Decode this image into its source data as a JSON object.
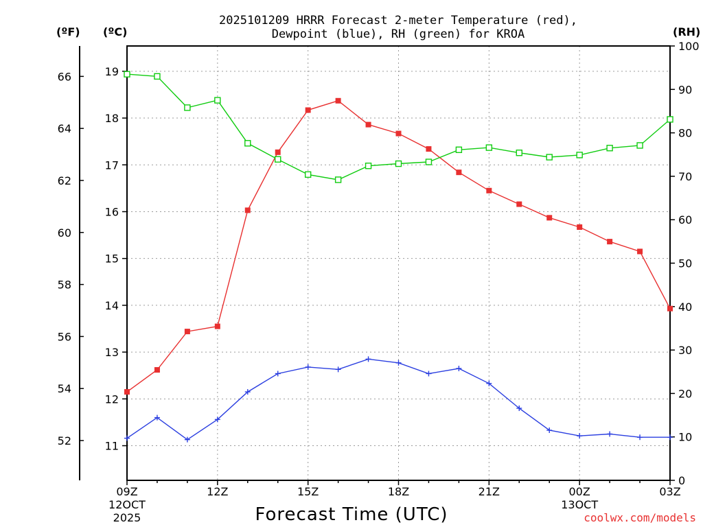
{
  "title": {
    "line1": "2025101209 HRRR Forecast 2-meter Temperature (red),",
    "line2": "Dewpoint (blue), RH (green) for KROA"
  },
  "units": {
    "fahrenheit": "(ºF)",
    "celsius": "(ºC)",
    "rh": "(RH)"
  },
  "credit": "coolwx.com/models",
  "colors": {
    "temperature": "#e83030",
    "dewpoint": "#2a3ee0",
    "rh": "#10cc10"
  },
  "chart_data": {
    "type": "line",
    "xlabel": "Forecast Time (UTC)",
    "x": [
      0,
      1,
      2,
      3,
      4,
      5,
      6,
      7,
      8,
      9,
      10,
      11,
      12,
      13,
      14,
      15,
      16,
      17,
      18
    ],
    "x_range": [
      0,
      18
    ],
    "x_ticks": [
      {
        "x": 0,
        "label": "09Z",
        "sub1": "12OCT",
        "sub2": "2025"
      },
      {
        "x": 3,
        "label": "12Z",
        "sub1": "",
        "sub2": ""
      },
      {
        "x": 6,
        "label": "15Z",
        "sub1": "",
        "sub2": ""
      },
      {
        "x": 9,
        "label": "18Z",
        "sub1": "",
        "sub2": ""
      },
      {
        "x": 12,
        "label": "21Z",
        "sub1": "",
        "sub2": ""
      },
      {
        "x": 15,
        "label": "00Z",
        "sub1": "13OCT",
        "sub2": ""
      },
      {
        "x": 18,
        "label": "03Z",
        "sub1": "",
        "sub2": ""
      }
    ],
    "y_left_celsius": {
      "range": [
        10.26,
        19.54
      ],
      "ticks": [
        "11",
        "12",
        "13",
        "14",
        "15",
        "16",
        "17",
        "18",
        "19"
      ]
    },
    "y_left_fahrenheit": {
      "range": [
        50.47,
        67.17
      ],
      "ticks": [
        "52",
        "54",
        "56",
        "58",
        "60",
        "62",
        "64",
        "66"
      ]
    },
    "y_right_rh": {
      "range": [
        0,
        100
      ],
      "ticks": [
        "0",
        "10",
        "20",
        "30",
        "40",
        "50",
        "60",
        "70",
        "80",
        "90",
        "100"
      ]
    },
    "series": [
      {
        "name": "2-meter Temperature",
        "axis": "celsius",
        "color": "red",
        "marker": "filled-square",
        "values": [
          12.15,
          12.62,
          13.44,
          13.55,
          16.03,
          17.27,
          18.17,
          18.37,
          17.86,
          17.67,
          17.34,
          16.84,
          16.45,
          16.16,
          15.87,
          15.67,
          15.36,
          15.15,
          13.93
        ]
      },
      {
        "name": "Dewpoint",
        "axis": "celsius",
        "color": "blue",
        "marker": "plus",
        "values": [
          11.16,
          11.6,
          11.13,
          11.56,
          12.15,
          12.54,
          12.68,
          12.63,
          12.85,
          12.77,
          12.54,
          12.65,
          12.33,
          11.8,
          11.33,
          11.21,
          11.25,
          11.18,
          11.18
        ]
      },
      {
        "name": "RH",
        "axis": "rh",
        "color": "green",
        "marker": "open-square",
        "values": [
          93.5,
          93.0,
          85.8,
          87.5,
          77.6,
          73.9,
          70.4,
          69.2,
          72.4,
          72.9,
          73.3,
          76.1,
          76.6,
          75.4,
          74.4,
          74.9,
          76.5,
          77.1,
          83.1
        ]
      }
    ]
  }
}
